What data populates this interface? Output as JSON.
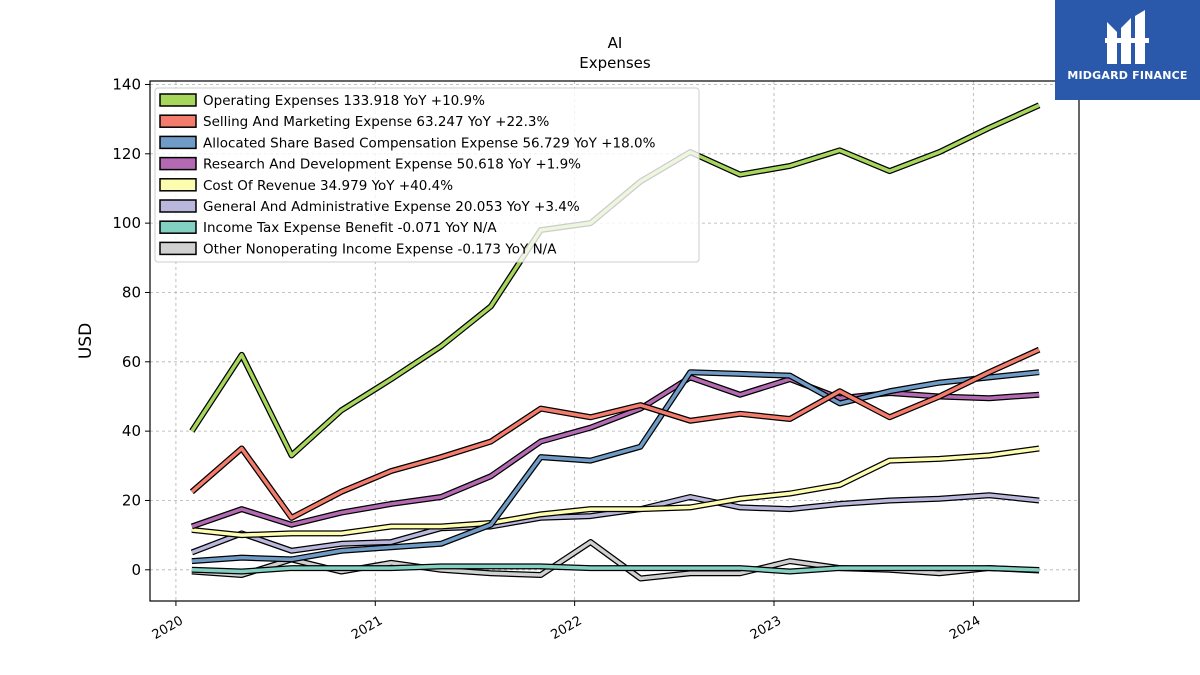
{
  "brand": {
    "name": "MIDGARD FINANCE",
    "bg_color": "#2a58ab",
    "icon": "midgard-logo-icon"
  },
  "chart_data": {
    "type": "line",
    "title": "AI",
    "subtitle": "Expenses",
    "ylabel": "USD",
    "xlabel": "",
    "ylim": [
      -9,
      141
    ],
    "xlim": [
      2019.87,
      2024.53
    ],
    "yticks": [
      0,
      20,
      40,
      60,
      80,
      100,
      120,
      140
    ],
    "xticks": [
      "2020",
      "2021",
      "2022",
      "2023",
      "2024"
    ],
    "grid": true,
    "legend_position": "top-left",
    "x": [
      2020.08,
      2020.33,
      2020.58,
      2020.83,
      2021.08,
      2021.33,
      2021.58,
      2021.83,
      2022.08,
      2022.33,
      2022.58,
      2022.83,
      2023.08,
      2023.33,
      2023.58,
      2023.83,
      2024.08,
      2024.33
    ],
    "series": [
      {
        "name": "Operating Expenses",
        "legend": "Operating Expenses  133.918 YoY +10.9%",
        "color": "#a6d65c",
        "values": [
          40,
          62,
          33,
          46,
          55,
          64.5,
          76,
          98,
          100,
          112,
          120.5,
          114,
          116.5,
          121,
          115,
          120.5,
          127.5,
          134
        ]
      },
      {
        "name": "Selling And Marketing Expense",
        "legend": "Selling And Marketing Expense  63.247 YoY +22.3%",
        "color": "#f47c6c",
        "values": [
          22.5,
          35,
          15,
          22.5,
          28.5,
          32.5,
          37,
          46.5,
          44,
          47.5,
          43,
          45,
          43.5,
          51.5,
          44,
          50,
          57,
          63.5
        ]
      },
      {
        "name": "Allocated Share Based Compensation Expense",
        "legend": "Allocated Share Based Compensation Expense  56.729 YoY +18.0%",
        "color": "#6f9cc7",
        "values": [
          2.5,
          3.5,
          3,
          5.5,
          6.5,
          7.5,
          13,
          32.5,
          31.5,
          35.5,
          57,
          56.5,
          56,
          48,
          51.5,
          54,
          55.5,
          57
        ]
      },
      {
        "name": "Research And Development Expense",
        "legend": "Research And Development Expense  50.618 YoY +1.9%",
        "color": "#b46ab2",
        "values": [
          12.5,
          17.5,
          13,
          16.5,
          19,
          21,
          27,
          37,
          41,
          46.5,
          55.5,
          50.5,
          55,
          49.5,
          51,
          50,
          49.5,
          50.5
        ]
      },
      {
        "name": "Cost Of Revenue",
        "legend": "Cost Of Revenue  34.979 YoY +40.4%",
        "color": "#fdfdb0",
        "values": [
          11.5,
          10,
          10.5,
          10.5,
          12.5,
          12.5,
          13.5,
          16,
          17.5,
          17.5,
          18,
          20.5,
          22,
          24.5,
          31.5,
          32,
          33,
          35
        ]
      },
      {
        "name": "General And Administrative Expense",
        "legend": "General And Administrative Expense  20.053 YoY +3.4%",
        "color": "#b9b7dc",
        "values": [
          5,
          10.5,
          5.5,
          7.5,
          8,
          12,
          12.5,
          15,
          15.5,
          17.5,
          21,
          18,
          17.5,
          19,
          20,
          20.5,
          21.5,
          20
        ]
      },
      {
        "name": "Income Tax Expense Benefit",
        "legend": "Income Tax Expense Benefit  -0.071 YoY N/A",
        "color": "#82d1c2",
        "values": [
          0,
          -0.5,
          0.5,
          0.5,
          0.5,
          1,
          1,
          1,
          0.5,
          0.5,
          0.5,
          0.5,
          -0.5,
          0.5,
          0.5,
          0.5,
          0.5,
          -0.07
        ]
      },
      {
        "name": "Other Nonoperating Income Expense",
        "legend": "Other Nonoperating Income Expense  -0.173 YoY N/A",
        "color": "#d0d0d0",
        "values": [
          -0.5,
          -1.5,
          3,
          -0.5,
          2,
          0,
          -1,
          -1.5,
          8,
          -2.5,
          -1,
          -1,
          2.5,
          0.5,
          0,
          -1,
          0.5,
          -0.2
        ]
      }
    ]
  }
}
